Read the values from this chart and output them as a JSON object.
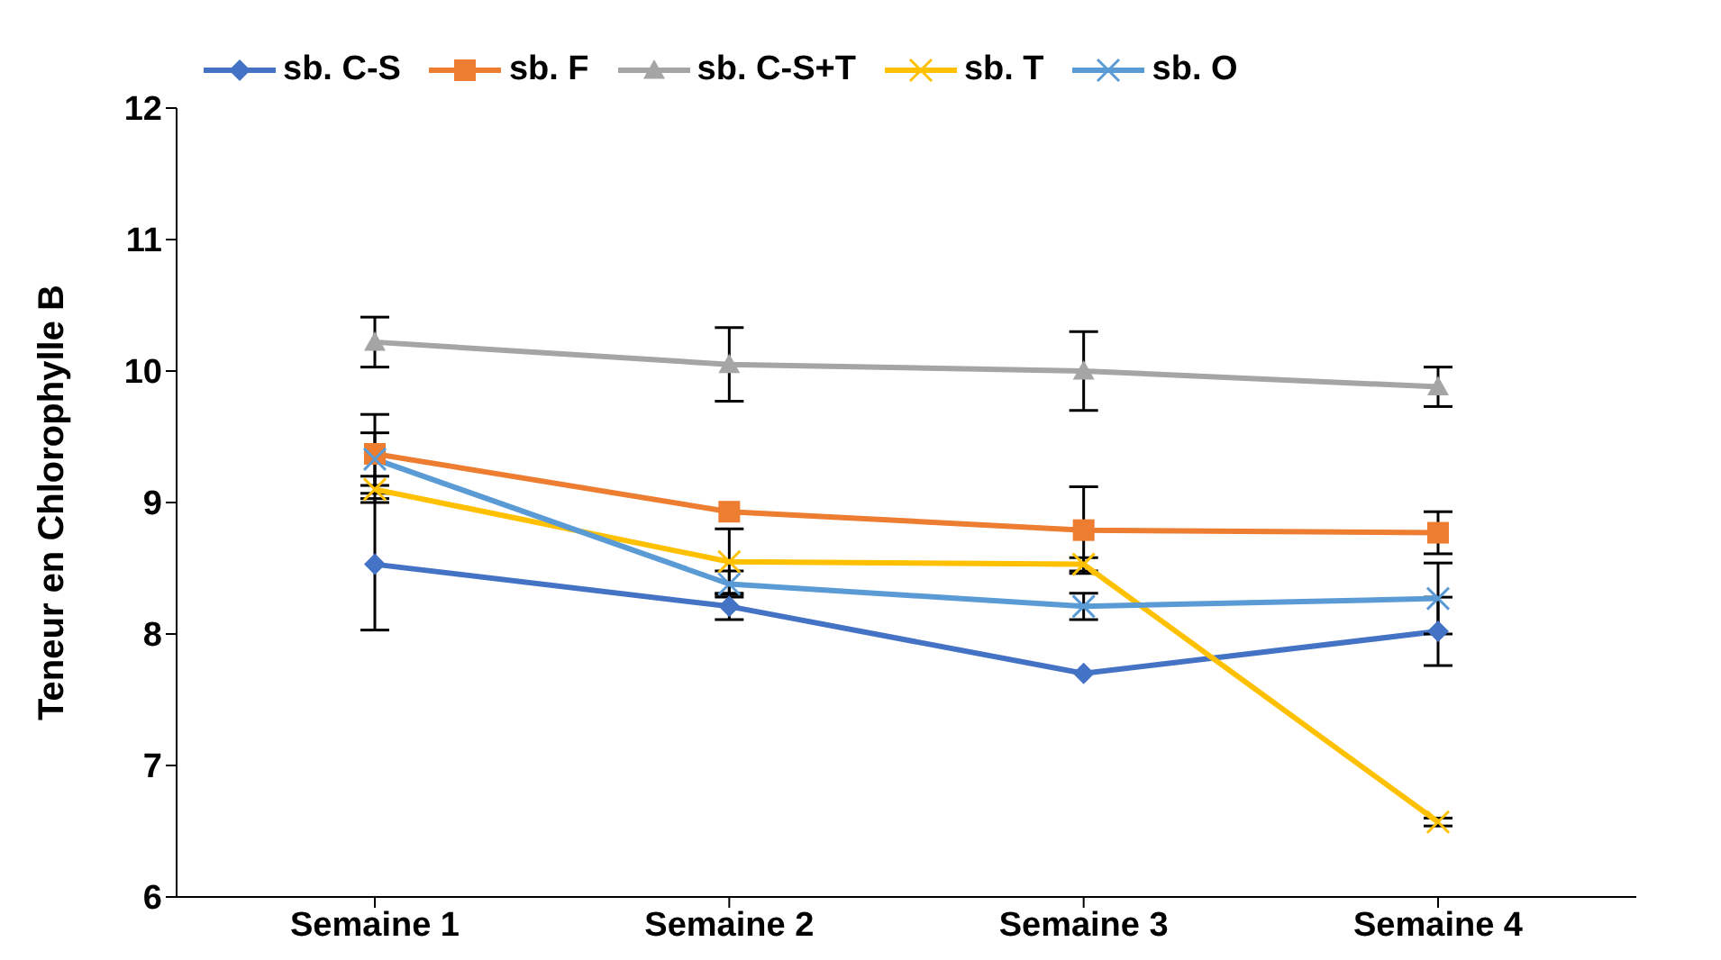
{
  "chart_data": {
    "type": "line",
    "ylabel": "Teneur en Chlorophylle B",
    "categories": [
      "Semaine 1",
      "Semaine 2",
      "Semaine 3",
      "Semaine 4"
    ],
    "ylim": [
      6,
      12
    ],
    "yticks": [
      6,
      7,
      8,
      9,
      10,
      11,
      12
    ],
    "grid": false,
    "legend": "top",
    "series": [
      {
        "name": "sb. C-S",
        "color": "#4472c4",
        "marker": "diamond",
        "values": [
          8.53,
          8.21,
          7.7,
          8.02
        ],
        "errors": [
          0.5,
          0.1,
          null,
          0.26
        ]
      },
      {
        "name": "sb. F",
        "color": "#ed7d31",
        "marker": "square",
        "values": [
          9.37,
          8.93,
          8.79,
          8.77
        ],
        "errors": [
          0.3,
          null,
          0.33,
          0.16
        ]
      },
      {
        "name": "sb. C-S+T",
        "color": "#a5a5a5",
        "marker": "triangle",
        "values": [
          10.22,
          10.05,
          10.0,
          9.88
        ],
        "errors": [
          0.19,
          0.28,
          0.3,
          0.15
        ]
      },
      {
        "name": "sb. T",
        "color": "#ffc000",
        "marker": "cross",
        "values": [
          9.1,
          8.55,
          8.53,
          6.57
        ],
        "errors": [
          0.1,
          0.25,
          0.05,
          0.03
        ]
      },
      {
        "name": "sb. O",
        "color": "#5b9bd5",
        "marker": "cross",
        "values": [
          9.33,
          8.38,
          8.21,
          8.27
        ],
        "errors": [
          0.2,
          0.1,
          0.1,
          0.27
        ]
      }
    ]
  }
}
